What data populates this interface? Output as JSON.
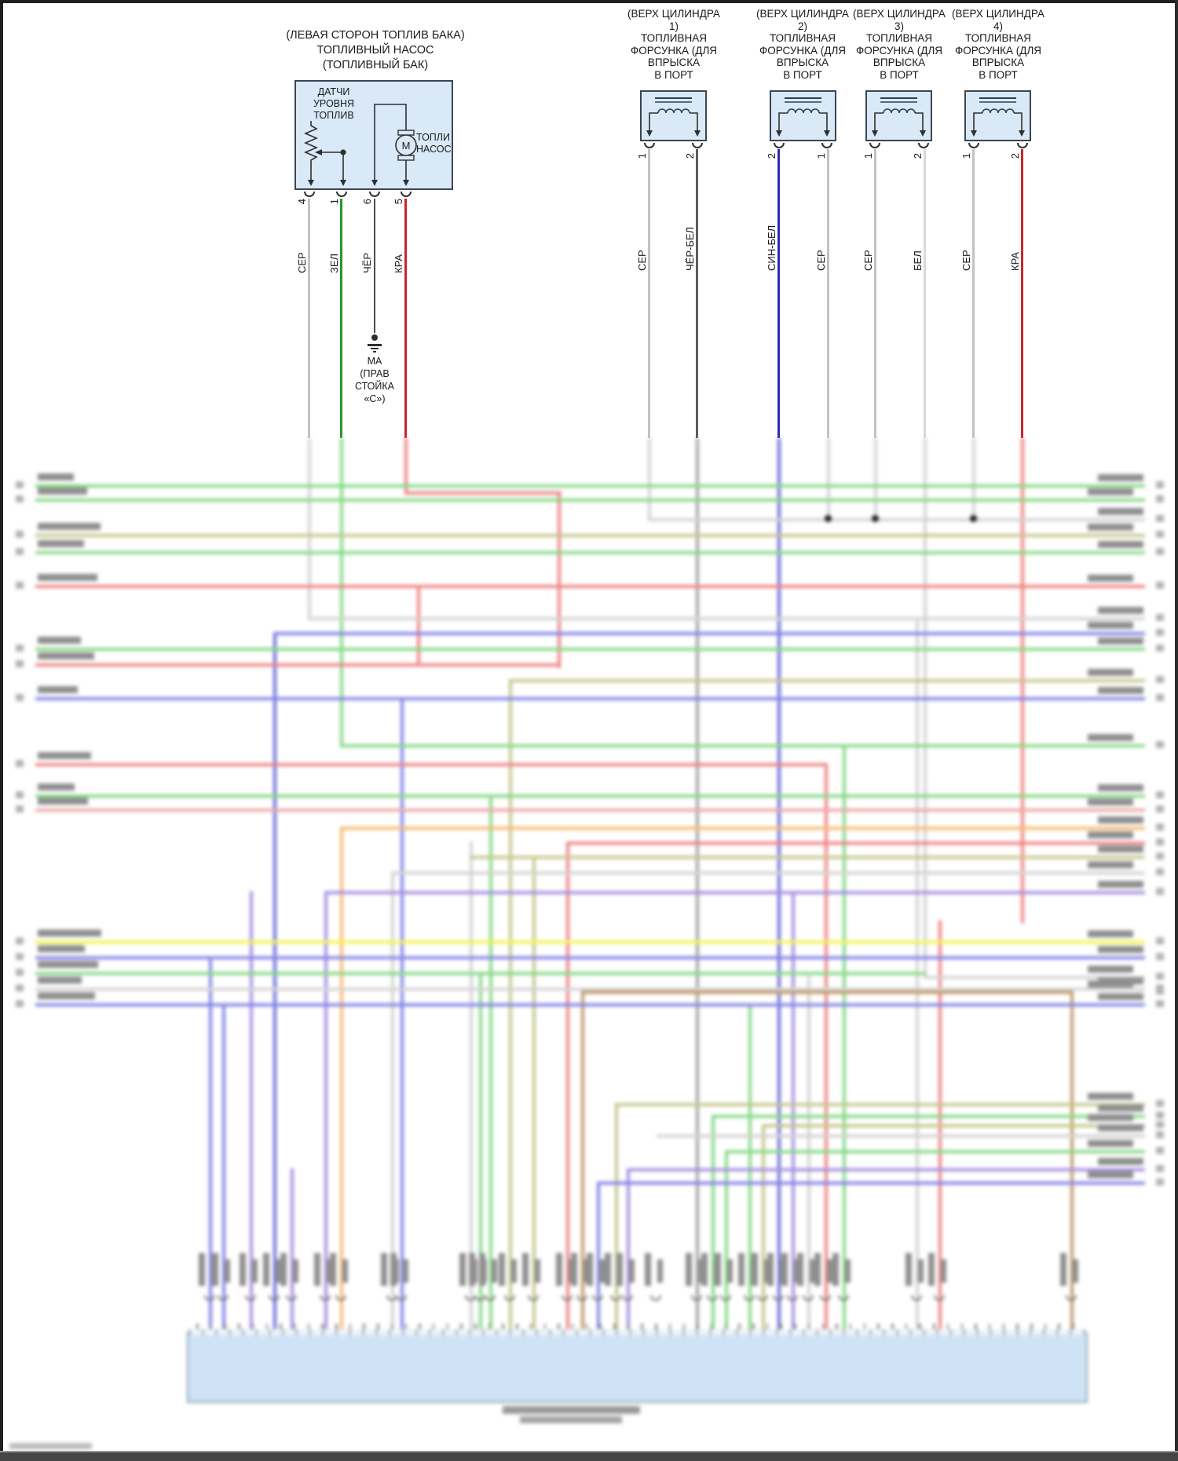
{
  "diagram": {
    "language": "ru",
    "type": "wiring-diagram"
  },
  "fuel_pump": {
    "title_lines": "(ЛЕВАЯ СТОРОН ТОПЛИВ БАКА)\nТОПЛИВНЫЙ НАСОС\n(ТОПЛИВНЫЙ БАК)",
    "sensor_label": "ДАТЧИ\nУРОВНЯ\nТОПЛИВ",
    "motor_letter": "М",
    "pump_label": "ТОПЛИ\nНАСОС",
    "pins": [
      {
        "color_name": "СЕР",
        "pin": "4"
      },
      {
        "color_name": "ЗЕЛ",
        "pin": "1"
      },
      {
        "color_name": "ЧЁР",
        "pin": "6"
      },
      {
        "color_name": "КРА",
        "pin": "5"
      }
    ]
  },
  "ground": {
    "label": "МА\n(ПРАВ\nСТОЙКА\n«С»)"
  },
  "injectors": [
    {
      "title_lines": "(ВЕРХ ЦИЛИНДРА\n1)\nТОПЛИВНАЯ\nФОРСУНКА (ДЛЯ\nВПРЫСКА\nВ ПОРТ",
      "pins": [
        {
          "color_name": "СЕР",
          "pin": "1"
        },
        {
          "color_name": "ЧЁР-БЕЛ",
          "pin": "2"
        }
      ]
    },
    {
      "title_lines": "(ВЕРХ ЦИЛИНДРА\n2)\nТОПЛИВНАЯ\nФОРСУНКА (ДЛЯ\nВПРЫСКА\nВ ПОРТ",
      "pins": [
        {
          "color_name": "СИН-БЕЛ",
          "pin": "2"
        },
        {
          "color_name": "СЕР",
          "pin": "1"
        }
      ]
    },
    {
      "title_lines": "(ВЕРХ ЦИЛИНДРА\n3)\nТОПЛИВНАЯ\nФОРСУНКА (ДЛЯ\nВПРЫСКА\nВ ПОРТ",
      "pins": [
        {
          "color_name": "СЕР",
          "pin": "1"
        },
        {
          "color_name": "БЕЛ",
          "pin": "2"
        }
      ]
    },
    {
      "title_lines": "(ВЕРХ ЦИЛИНДРА\n4)\nТОПЛИВНАЯ\nФОРСУНКА (ДЛЯ\nВПРЫСКА\nВ ПОРТ",
      "pins": [
        {
          "color_name": "СЕР",
          "pin": "1"
        },
        {
          "color_name": "КРА",
          "pin": "2"
        }
      ]
    }
  ],
  "wire_colors": {
    "СЕР": "#c2c2c2",
    "ЗЕЛ": "#27962a",
    "ЧЁР": "#4d4d4d",
    "КРА": "#c9262b",
    "ЧЁР-БЕЛ": "#5a5a5a",
    "СИН-БЕЛ": "#2b2bb4",
    "БЕЛ": "#d8d8d8"
  },
  "component_box_fill": "#d9e9f8",
  "connector_fill": "#cfe3f6"
}
